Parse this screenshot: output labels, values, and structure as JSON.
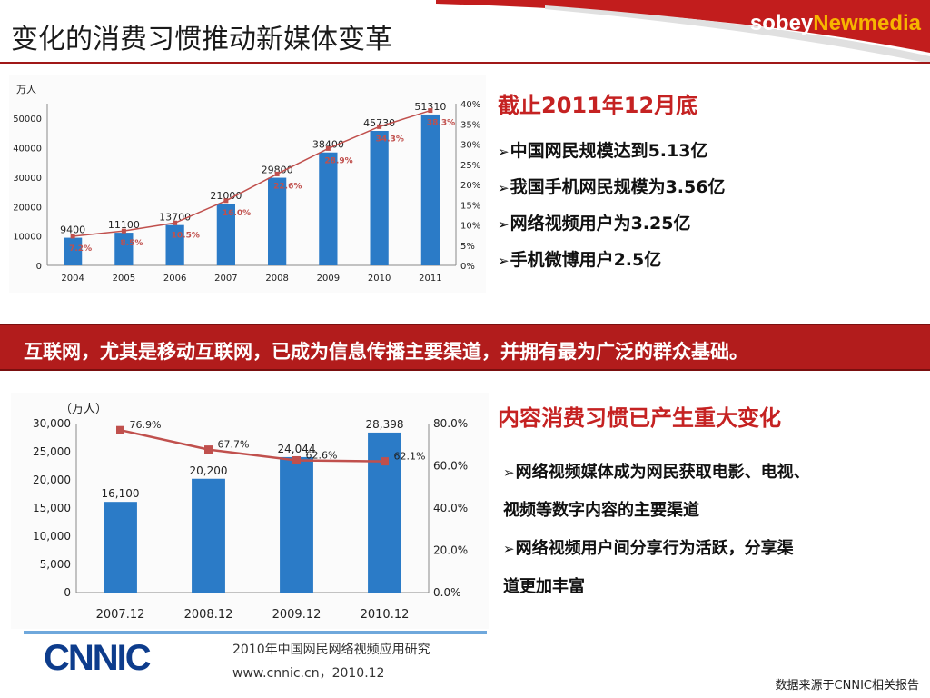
{
  "slide": {
    "title": "变化的消费习惯推动新媒体变革",
    "logo_part1": "sobey",
    "logo_part2": "Newmedia",
    "banner": "互联网，尤其是移动互联网，已成为信息传播主要渠道，并拥有最为广泛的群众基础。",
    "source": "数据来源于CNNIC相关报告"
  },
  "section1": {
    "heading": "截止2011年12月底",
    "bullets": [
      "中国网民规模达到5.13亿",
      "我国手机网民规模为3.56亿",
      "网络视频用户为3.25亿",
      "手机微博用户2.5亿"
    ]
  },
  "section2": {
    "heading": "内容消费习惯已产生重大变化",
    "bullets": [
      "网络视频媒体成为网民获取电影、电视、",
      "视频等数字内容的主要渠道",
      "网络视频用户间分享行为活跃，分享渠",
      "道更加丰富"
    ]
  },
  "cnnic": {
    "logo": "CNNIC",
    "caption": "2010年中国网民网络视频应用研究",
    "url": "www.cnnic.cn，2010.12"
  },
  "colors": {
    "bar": "#2b7bc7",
    "line": "#c0504d",
    "accent_red": "#b21c1c",
    "heading_red": "#c52222"
  },
  "chart_data": [
    {
      "type": "bar",
      "unit_label": "万人",
      "categories": [
        "2004",
        "2005",
        "2006",
        "2007",
        "2008",
        "2009",
        "2010",
        "2011"
      ],
      "series": [
        {
          "type": "bar",
          "values": [
            9400,
            11100,
            13700,
            21000,
            29800,
            38400,
            45730,
            51310
          ],
          "labels": [
            "9400",
            "11100",
            "13700",
            "21000",
            "29800",
            "38400",
            "45730",
            "51310"
          ]
        },
        {
          "type": "line",
          "values": [
            7.2,
            8.5,
            10.5,
            16.0,
            22.6,
            28.9,
            34.3,
            38.3
          ],
          "labels": [
            "7.2%",
            "8.5%",
            "10.5%",
            "16.0%",
            "22.6%",
            "28.9%",
            "34.3%",
            "38.3%"
          ]
        }
      ],
      "y_ticks": [
        "0",
        "10000",
        "20000",
        "30000",
        "40000",
        "50000"
      ],
      "y2_ticks": [
        "0%",
        "5%",
        "10%",
        "15%",
        "20%",
        "25%",
        "30%",
        "35%",
        "40%"
      ],
      "ylim": [
        0,
        55000
      ],
      "y2lim": [
        0,
        40
      ],
      "grid": false
    },
    {
      "type": "bar",
      "unit_label": "（万人）",
      "categories": [
        "2007.12",
        "2008.12",
        "2009.12",
        "2010.12"
      ],
      "series": [
        {
          "type": "bar",
          "values": [
            16100,
            20200,
            24044,
            28398
          ],
          "labels": [
            "16,100",
            "20,200",
            "24,044",
            "28,398"
          ]
        },
        {
          "type": "line",
          "values": [
            76.9,
            67.7,
            62.6,
            62.1
          ],
          "labels": [
            "76.9%",
            "67.7%",
            "62.6%",
            "62.1%"
          ]
        }
      ],
      "y_ticks": [
        "0",
        "5,000",
        "10,000",
        "15,000",
        "20,000",
        "25,000",
        "30,000"
      ],
      "y2_ticks": [
        "0.0%",
        "20.0%",
        "40.0%",
        "60.0%",
        "80.0%"
      ],
      "ylim": [
        0,
        30000
      ],
      "y2lim": [
        0,
        80
      ],
      "grid": false
    }
  ]
}
